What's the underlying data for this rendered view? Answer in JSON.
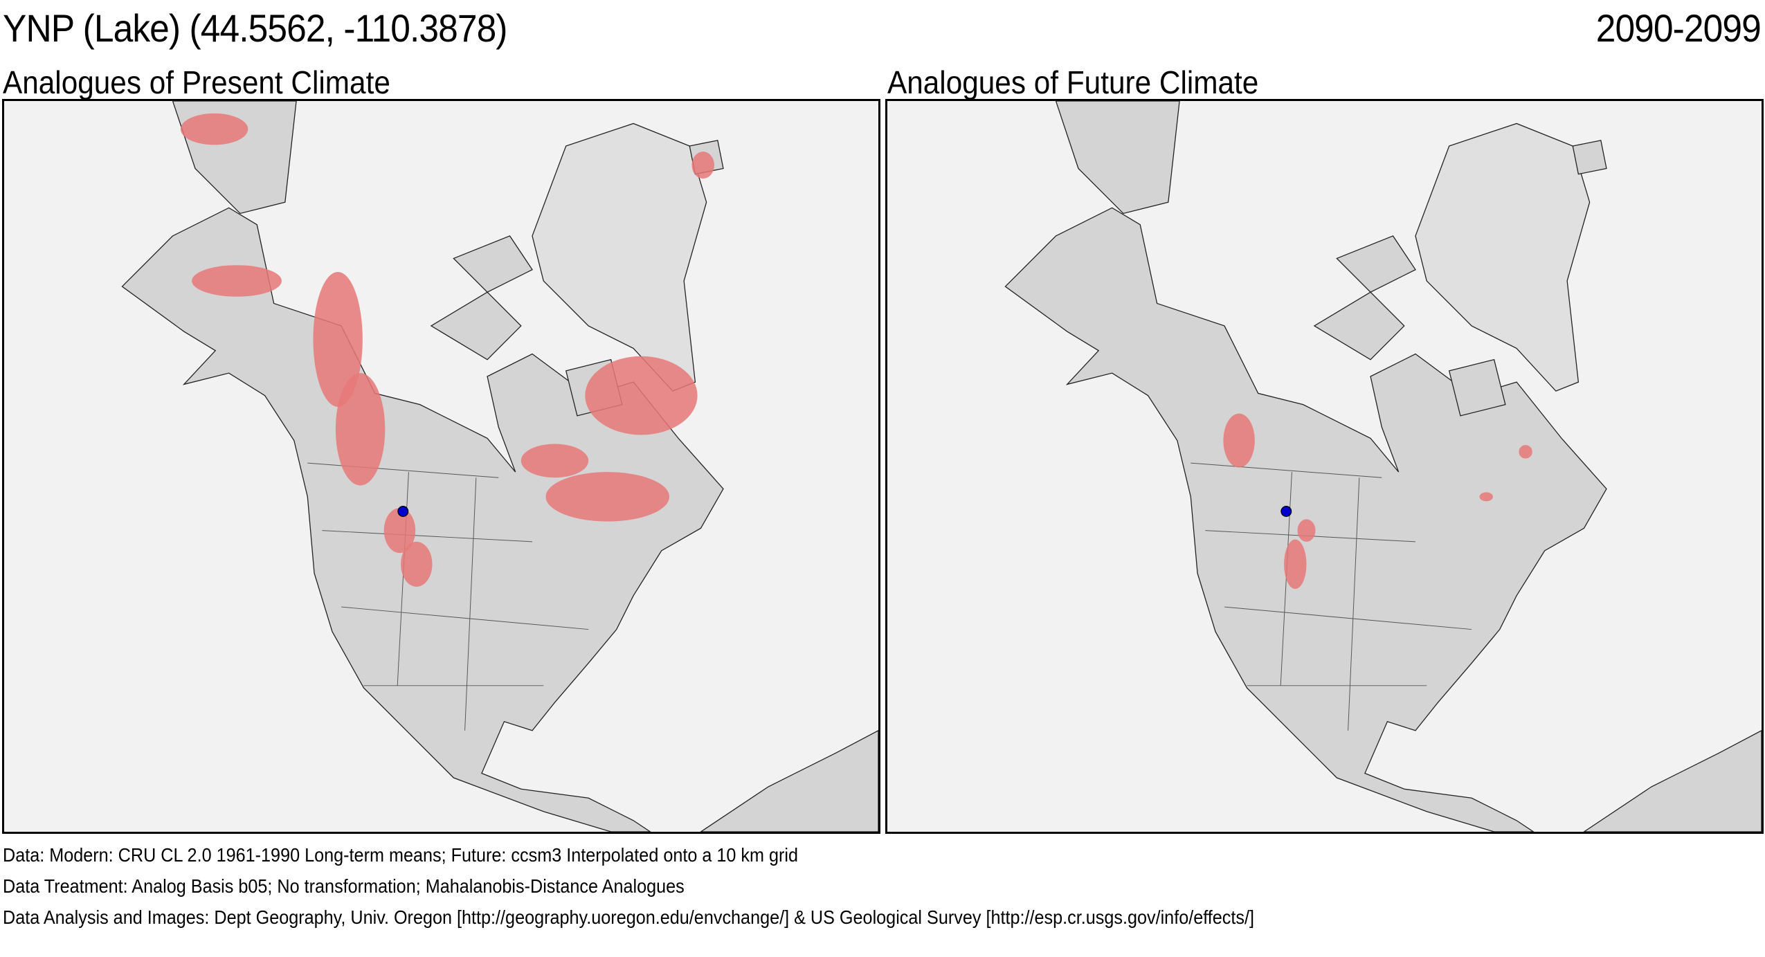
{
  "header": {
    "site": "YNP (Lake)  (44.5562, -110.3878)",
    "period": "2090-2099"
  },
  "panels": [
    {
      "title": "Analogues of Present Climate"
    },
    {
      "title": "Analogues of Future Climate"
    }
  ],
  "site_location": {
    "lat": 44.5562,
    "lon": -110.3878,
    "marker_color": "#0000cc"
  },
  "colors": {
    "analogue": "#e87878",
    "land": "#d4d4d4",
    "water": "#f2f2f2"
  },
  "footer": {
    "data": "Data:  Modern: CRU CL 2.0 1961-1990 Long-term means; Future: ccsm3 Interpolated onto a 10 km grid",
    "treatment": "Data Treatment:  Analog Basis b05; No transformation; Mahalanobis-Distance Analogues",
    "credits": "Data Analysis and Images:  Dept Geography, Univ. Oregon [http://geography.uoregon.edu/envchange/] & US Geological Survey [http://esp.cr.usgs.gov/info/effects/]"
  }
}
